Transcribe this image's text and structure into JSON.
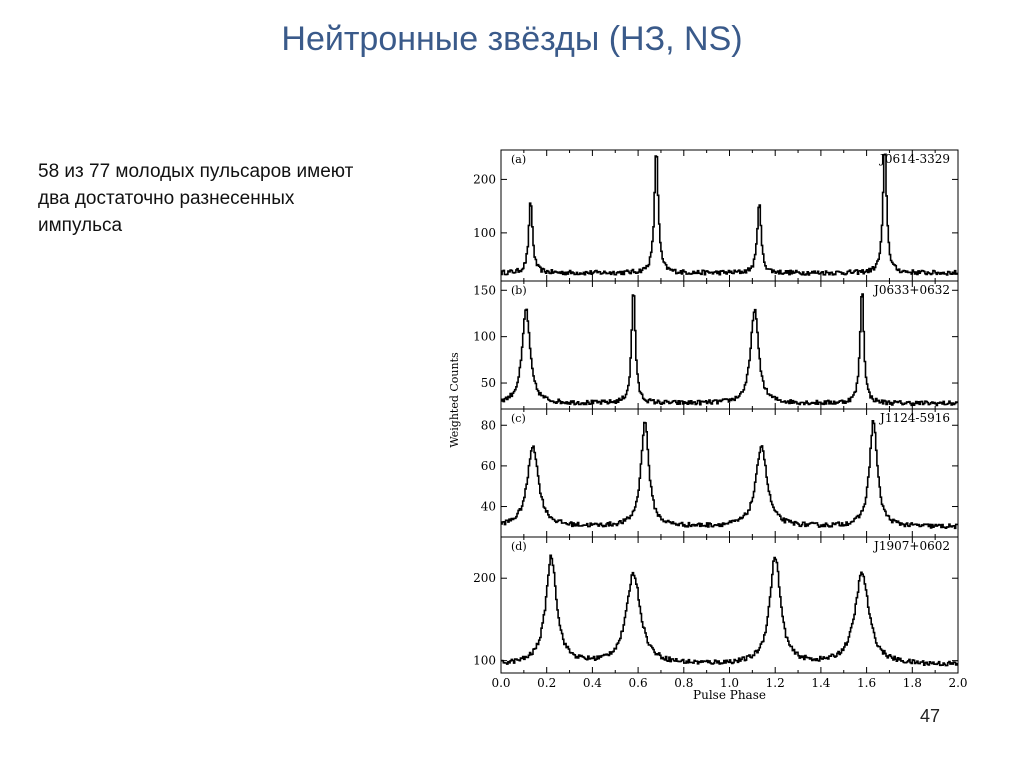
{
  "slide": {
    "title": "Нейтронные звёзды (НЗ, NS)",
    "body_lines": [
      "58 из 77 молодых пульсаров имеют",
      "два достаточно разнесенных",
      "импульса"
    ],
    "page_number": "47"
  },
  "chart_data": {
    "type": "line",
    "xlabel": "Pulse Phase",
    "ylabel": "Weighted Counts",
    "xlim": [
      0.0,
      2.0
    ],
    "x_ticks": [
      "0.0",
      "0.2",
      "0.4",
      "0.6",
      "0.8",
      "1.0",
      "1.2",
      "1.4",
      "1.6",
      "1.8",
      "2.0"
    ],
    "panels": [
      {
        "label": "(a)",
        "name": "J0614-3329",
        "ylim": [
          10,
          255
        ],
        "yticks": [
          100,
          200
        ],
        "ytick_labels": [
          "100",
          "200"
        ],
        "baseline": 25,
        "peaks": [
          {
            "x": 0.13,
            "height": 160,
            "width": 0.012
          },
          {
            "x": 0.68,
            "height": 258,
            "width": 0.012
          },
          {
            "x": 1.13,
            "height": 160,
            "width": 0.012
          },
          {
            "x": 1.68,
            "height": 258,
            "width": 0.012
          }
        ]
      },
      {
        "label": "(b)",
        "name": "J0633+0632",
        "ylim": [
          22,
          160
        ],
        "yticks": [
          50,
          100,
          150
        ],
        "ytick_labels": [
          "50",
          "100",
          "150"
        ],
        "baseline": 28,
        "peaks": [
          {
            "x": 0.11,
            "height": 130,
            "width": 0.025
          },
          {
            "x": 0.58,
            "height": 152,
            "width": 0.012
          },
          {
            "x": 1.11,
            "height": 130,
            "width": 0.025
          },
          {
            "x": 1.58,
            "height": 152,
            "width": 0.012
          }
        ]
      },
      {
        "label": "(c)",
        "name": "J1124-5916",
        "ylim": [
          25,
          88
        ],
        "yticks": [
          40,
          60,
          80
        ],
        "ytick_labels": [
          "40",
          "60",
          "80"
        ],
        "baseline": 30,
        "peaks": [
          {
            "x": 0.14,
            "height": 70,
            "width": 0.035
          },
          {
            "x": 0.63,
            "height": 82,
            "width": 0.025
          },
          {
            "x": 1.14,
            "height": 70,
            "width": 0.035
          },
          {
            "x": 1.63,
            "height": 82,
            "width": 0.025
          }
        ]
      },
      {
        "label": "(d)",
        "name": "J1907+0602",
        "ylim": [
          85,
          250
        ],
        "yticks": [
          100,
          200
        ],
        "ytick_labels": [
          "100",
          "200"
        ],
        "baseline": 95,
        "peaks": [
          {
            "x": 0.22,
            "height": 225,
            "width": 0.035
          },
          {
            "x": 0.58,
            "height": 205,
            "width": 0.045
          },
          {
            "x": 1.2,
            "height": 225,
            "width": 0.035
          },
          {
            "x": 1.58,
            "height": 205,
            "width": 0.045
          }
        ]
      }
    ]
  }
}
